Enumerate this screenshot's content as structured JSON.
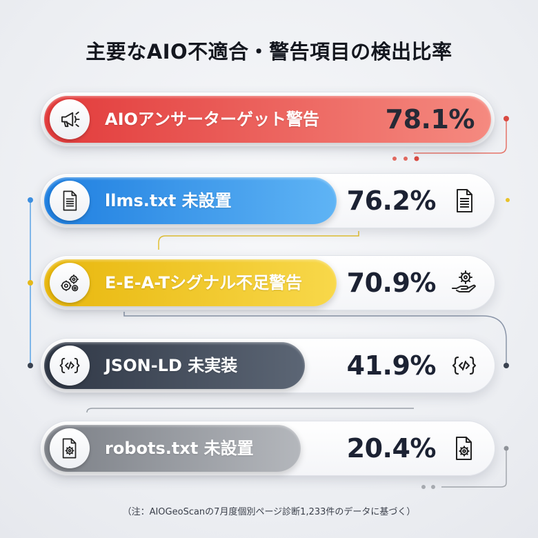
{
  "title": "主要なAIO不適合・警告項目の検出比率",
  "footnote": "（注：AIOGeoScanの7月度個別ページ診断1,233件のデータに基づく）",
  "chart_data": {
    "type": "bar",
    "title": "主要なAIO不適合・警告項目の検出比率",
    "categories": [
      "AIOアンサーターゲット警告",
      "llms.txt 未設置",
      "E-E-A-Tシグナル不足警告",
      "JSON-LD 未実装",
      "robots.txt 未設置"
    ],
    "values": [
      78.1,
      76.2,
      70.9,
      41.9,
      20.4
    ],
    "unit": "%",
    "value_labels": [
      "78.1%",
      "76.2%",
      "70.9%",
      "41.9%",
      "20.4%"
    ]
  },
  "items": [
    {
      "label": "AIOアンサーターゲット警告",
      "value_label": "78.1%",
      "color_from": "#e23b3b",
      "color_to": "#f58a80",
      "icon": "megaphone-icon",
      "side_icon": ""
    },
    {
      "label": "llms.txt 未設置",
      "value_label": "76.2%",
      "color_from": "#1f7fe0",
      "color_to": "#5fb4f5",
      "icon": "document-icon",
      "side_icon": "document-icon"
    },
    {
      "label": "E-E-A-Tシグナル不足警告",
      "value_label": "70.9%",
      "color_from": "#e8b70d",
      "color_to": "#f8d84a",
      "icon": "gears-icon",
      "side_icon": "gear-hand-icon"
    },
    {
      "label": "JSON-LD 未実装",
      "value_label": "41.9%",
      "color_from": "#2f3745",
      "color_to": "#5c6675",
      "icon": "code-icon",
      "side_icon": "code-icon"
    },
    {
      "label": "robots.txt 未設置",
      "value_label": "20.4%",
      "color_from": "#7b7f86",
      "color_to": "#b4b7bc",
      "icon": "file-gear-icon",
      "side_icon": "file-gear-icon"
    }
  ]
}
